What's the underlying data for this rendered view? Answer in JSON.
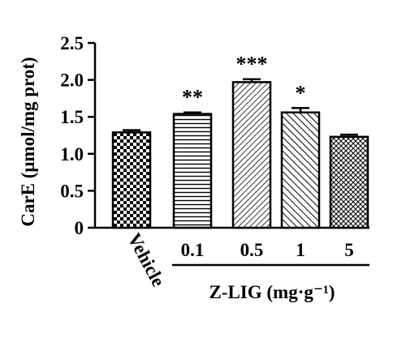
{
  "chart_data": {
    "type": "bar",
    "ylabel": "CarE (μmol/mg prot)",
    "ylim": [
      0,
      2.5
    ],
    "yticks": [
      "0",
      "0.5",
      "1.0",
      "1.5",
      "2.0",
      "2.5"
    ],
    "categories": [
      "Vehicle",
      "0.1",
      "0.5",
      "1",
      "5"
    ],
    "values": [
      1.29,
      1.54,
      1.97,
      1.56,
      1.23
    ],
    "errors": [
      0.03,
      0.02,
      0.04,
      0.06,
      0.03
    ],
    "significance": [
      "",
      "**",
      "***",
      "*",
      ""
    ],
    "patterns": [
      "checker",
      "horizontal",
      "diagonal-fine",
      "diagonal-bold",
      "crosshatch"
    ],
    "group_label": "Z-LIG (mg·g⁻¹)",
    "grid": false,
    "colors": {
      "ink": "#000000",
      "background": "#ffffff"
    }
  }
}
